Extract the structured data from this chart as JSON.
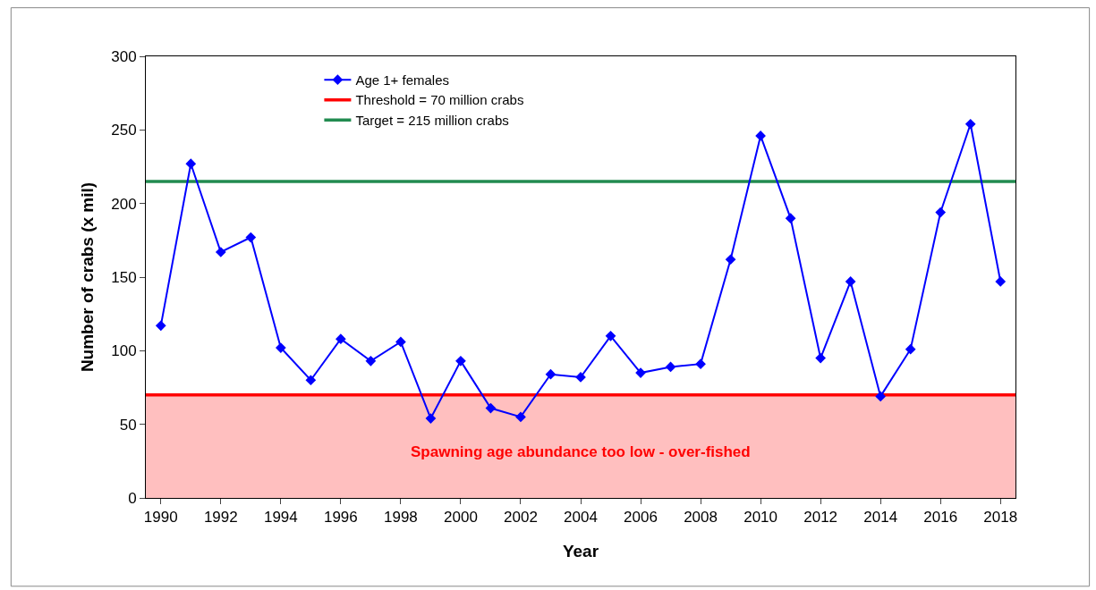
{
  "chart_data": {
    "type": "line",
    "xlabel": "Year",
    "ylabel": "Number of crabs (x mil)",
    "x": [
      1990,
      1991,
      1992,
      1993,
      1994,
      1995,
      1996,
      1997,
      1998,
      1999,
      2000,
      2001,
      2002,
      2003,
      2004,
      2005,
      2006,
      2007,
      2008,
      2009,
      2010,
      2011,
      2012,
      2013,
      2014,
      2015,
      2016,
      2017,
      2018
    ],
    "series": [
      {
        "name": "Age 1+ females",
        "color": "#0000ff",
        "values": [
          117,
          227,
          167,
          177,
          102,
          80,
          108,
          93,
          106,
          54,
          93,
          61,
          55,
          84,
          82,
          110,
          85,
          89,
          91,
          162,
          246,
          190,
          95,
          147,
          69,
          101,
          194,
          254,
          147
        ]
      }
    ],
    "ref_lines": [
      {
        "axis": "y",
        "value": 70,
        "label": "Threshold = 70 million crabs",
        "color": "#ff0000"
      },
      {
        "axis": "y",
        "value": 215,
        "label": "Target = 215 million crabs",
        "color": "#228b50"
      }
    ],
    "bands": [
      {
        "axis": "y",
        "from": 0,
        "to": 70,
        "label": "Spawning age abundance too low - over-fished",
        "color": "#ffbfbf"
      }
    ],
    "xlim": [
      1989.5,
      2018.5
    ],
    "xticks": [
      1990,
      1992,
      1994,
      1996,
      1998,
      2000,
      2002,
      2004,
      2006,
      2008,
      2010,
      2012,
      2014,
      2016,
      2018
    ],
    "ylim": [
      0,
      300
    ],
    "yticks": [
      0,
      50,
      100,
      150,
      200,
      250,
      300
    ],
    "grid": false,
    "legend": "top left",
    "marker": "diamond",
    "line_style": "solid"
  }
}
